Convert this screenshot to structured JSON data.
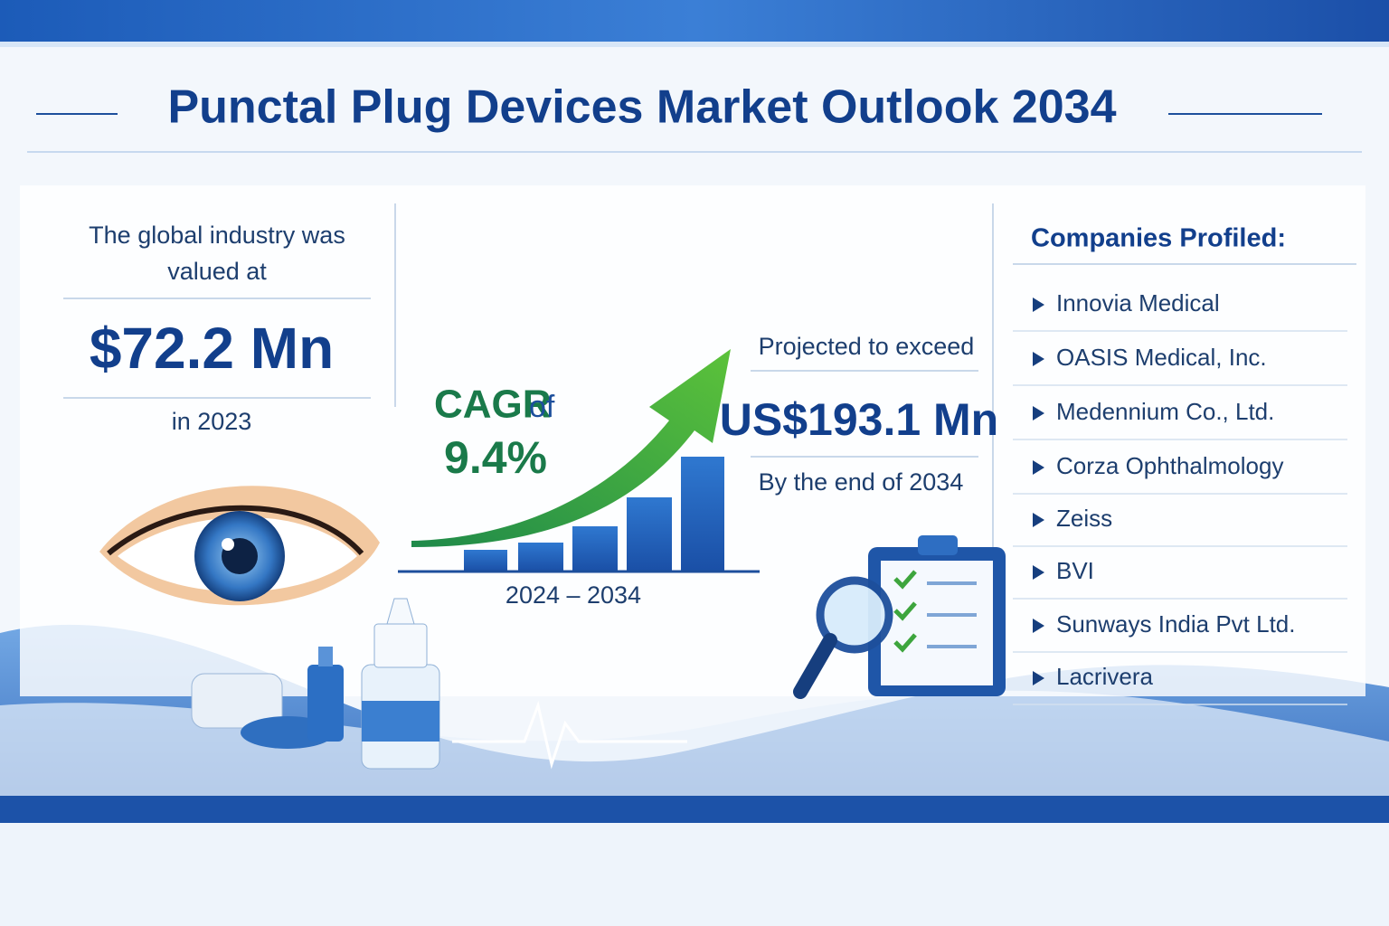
{
  "header": {
    "title": "Punctal Plug Devices Market Outlook 2034"
  },
  "valuation": {
    "line1": "The global industry was",
    "line2": "valued at",
    "value": "$72.2 Mn",
    "year": "in 2023"
  },
  "growth": {
    "cagr_label": "CAGR",
    "cagr_of": "of",
    "cagr_value": "9.4%",
    "period": "2024 – 2034"
  },
  "projection": {
    "intro": "Projected to exceed",
    "value": "US$193.1 Mn",
    "year": "By the end of 2034"
  },
  "companies": {
    "heading": "Companies Profiled:",
    "items": [
      "Innovia Medical",
      "OASIS Medical, Inc.",
      "Medennium Co., Ltd.",
      "Corza Ophthalmology",
      "Zeiss",
      "BVI",
      "Sunways India Pvt Ltd.",
      "Lacrivera"
    ]
  }
}
